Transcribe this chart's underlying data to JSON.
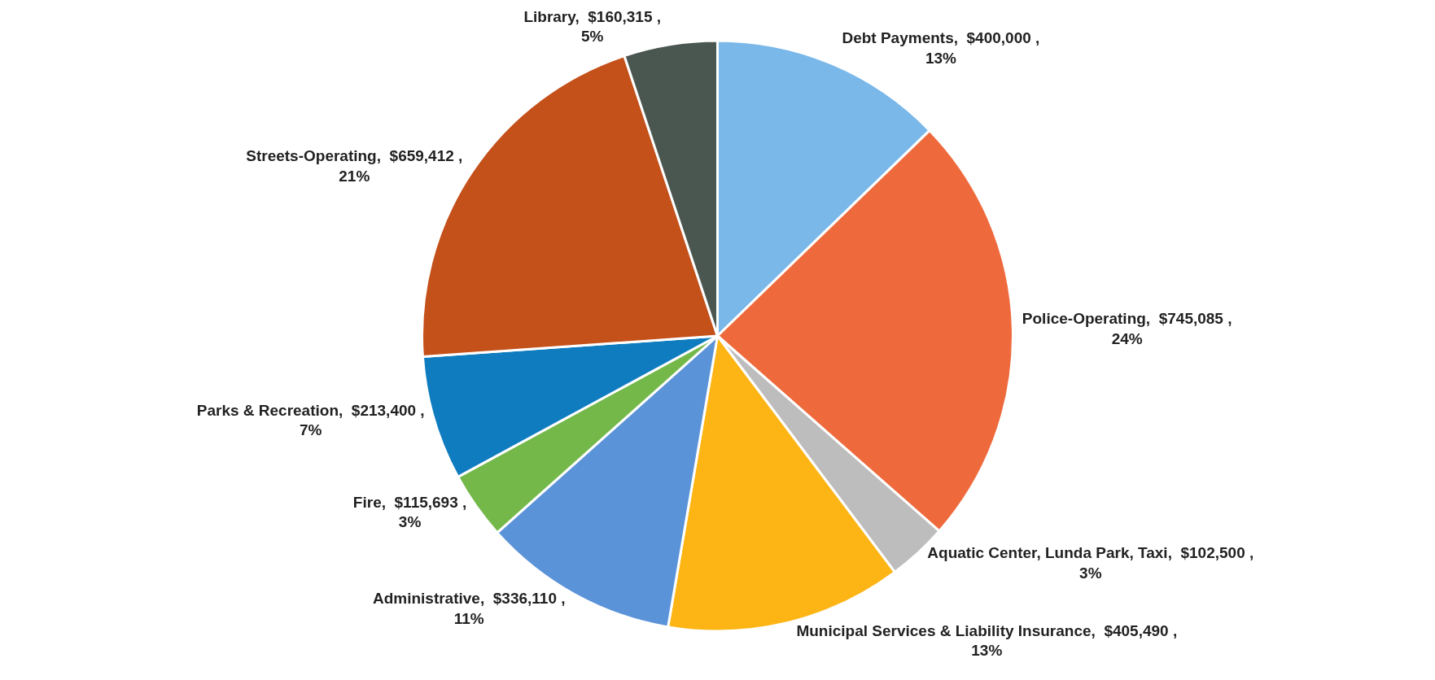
{
  "chart_data": {
    "type": "pie",
    "categories": [
      "Debt Payments",
      "Police-Operating",
      "Aquatic Center, Lunda Park, Taxi",
      "Municipal Services & Liability Insurance",
      "Administrative",
      "Fire",
      "Parks & Recreation",
      "Streets-Operating",
      "Library"
    ],
    "values": [
      400000,
      745085,
      102500,
      405490,
      336110,
      115693,
      213400,
      659412,
      160315
    ],
    "value_labels": [
      "$400,000 ,\n13%",
      "$745,085 ,\n24%",
      "$102,500 ,\n3%",
      "$405,490 ,\n13%",
      "$336,110 ,\n11%",
      "$115,693 ,\n3%",
      "$213,400 ,\n7%",
      "$659,412 ,\n21%",
      "$160,315 ,\n5%"
    ],
    "colors": [
      "#7ab8ea",
      "#ee6a3c",
      "#bdbdbd",
      "#fdb515",
      "#5b93d8",
      "#74b84a",
      "#0f7cbf",
      "#c4501a",
      "#4a5650"
    ],
    "legend": false
  }
}
